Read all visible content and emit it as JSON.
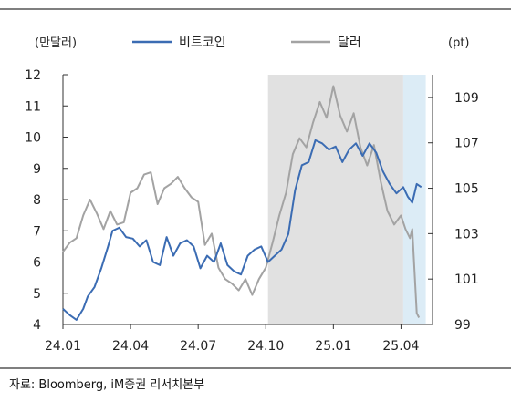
{
  "chart_data": {
    "type": "line",
    "y_left_unit": "(만달러)",
    "y_right_unit": "(pt)",
    "y_left_ticks": [
      4,
      5,
      6,
      7,
      8,
      9,
      10,
      11,
      12
    ],
    "y_right_ticks": [
      99,
      101,
      103,
      105,
      107,
      109
    ],
    "y_left_range": [
      4,
      12
    ],
    "y_right_range": [
      99,
      110
    ],
    "x_ticks": [
      "24.01",
      "24.04",
      "24.07",
      "24.10",
      "25.01",
      "25.04"
    ],
    "x_tick_months": [
      0,
      3,
      6,
      9,
      12,
      15
    ],
    "x_range_months": [
      0,
      16.4
    ],
    "grid": false,
    "legend_position": "top",
    "shaded_regions": [
      {
        "start_month": 9.1,
        "end_month": 15.1,
        "color": "#e1e1e1"
      },
      {
        "start_month": 15.1,
        "end_month": 16.1,
        "color": "#dcecf6"
      }
    ],
    "series": [
      {
        "name": "비트코인",
        "axis": "left",
        "color": "#3b6cb3",
        "x": [
          0,
          0.3,
          0.6,
          0.9,
          1.1,
          1.4,
          1.7,
          2.0,
          2.2,
          2.5,
          2.8,
          3.1,
          3.4,
          3.7,
          4.0,
          4.3,
          4.6,
          4.9,
          5.2,
          5.5,
          5.8,
          6.1,
          6.4,
          6.7,
          7.0,
          7.3,
          7.6,
          7.9,
          8.2,
          8.5,
          8.8,
          9.1,
          9.4,
          9.7,
          10.0,
          10.3,
          10.6,
          10.9,
          11.2,
          11.5,
          11.8,
          12.1,
          12.4,
          12.7,
          13.0,
          13.3,
          13.6,
          13.9,
          14.2,
          14.5,
          14.8,
          15.1,
          15.3,
          15.5,
          15.7,
          15.9
        ],
        "y": [
          4.5,
          4.3,
          4.15,
          4.5,
          4.9,
          5.2,
          5.8,
          6.5,
          7.0,
          7.1,
          6.8,
          6.75,
          6.5,
          6.7,
          6.0,
          5.9,
          6.8,
          6.2,
          6.6,
          6.7,
          6.5,
          5.8,
          6.2,
          6.0,
          6.6,
          5.9,
          5.7,
          5.6,
          6.2,
          6.4,
          6.5,
          6.0,
          6.2,
          6.4,
          6.9,
          8.3,
          9.1,
          9.2,
          9.9,
          9.8,
          9.6,
          9.7,
          9.2,
          9.6,
          9.8,
          9.4,
          9.8,
          9.5,
          8.9,
          8.5,
          8.2,
          8.4,
          8.1,
          7.9,
          8.5,
          8.4
        ]
      },
      {
        "name": "달러",
        "axis": "right",
        "color": "#a3a3a3",
        "x": [
          0,
          0.3,
          0.6,
          0.9,
          1.2,
          1.5,
          1.8,
          2.1,
          2.4,
          2.7,
          3.0,
          3.3,
          3.6,
          3.9,
          4.2,
          4.5,
          4.8,
          5.1,
          5.4,
          5.7,
          6.0,
          6.3,
          6.6,
          6.9,
          7.2,
          7.5,
          7.8,
          8.1,
          8.4,
          8.7,
          9.0,
          9.3,
          9.6,
          9.9,
          10.2,
          10.5,
          10.8,
          11.1,
          11.4,
          11.7,
          12.0,
          12.3,
          12.6,
          12.9,
          13.2,
          13.5,
          13.8,
          14.1,
          14.4,
          14.7,
          15.0,
          15.2,
          15.4,
          15.5,
          15.7,
          15.8
        ],
        "y": [
          102.2,
          102.6,
          102.8,
          103.8,
          104.5,
          103.9,
          103.2,
          104.0,
          103.4,
          103.5,
          104.8,
          105.0,
          105.6,
          105.7,
          104.3,
          105.0,
          105.2,
          105.5,
          105.0,
          104.6,
          104.4,
          102.5,
          103.0,
          101.5,
          101.0,
          100.8,
          100.5,
          101.0,
          100.3,
          101.0,
          101.5,
          102.6,
          103.8,
          104.8,
          106.5,
          107.2,
          106.8,
          107.9,
          108.8,
          108.1,
          109.5,
          108.2,
          107.5,
          108.3,
          106.8,
          106.0,
          106.9,
          105.3,
          104.0,
          103.4,
          103.8,
          103.2,
          102.8,
          103.2,
          99.5,
          99.3
        ]
      }
    ]
  },
  "footer": {
    "source_text": "자료: Bloomberg, iM증권  리서치본부"
  }
}
